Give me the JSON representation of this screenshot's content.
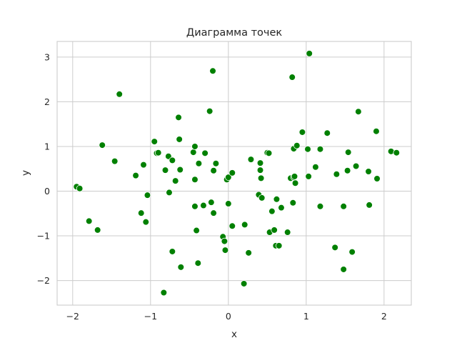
{
  "chart_data": {
    "type": "scatter",
    "title": "Диаграмма точек",
    "xlabel": "x",
    "ylabel": "y",
    "xlim": [
      -2.2,
      2.35
    ],
    "ylim": [
      -2.55,
      3.35
    ],
    "xticks": [
      -2,
      -1,
      0,
      1,
      2
    ],
    "yticks": [
      -2,
      -1,
      0,
      1,
      2,
      3
    ],
    "xtick_labels": [
      "−2",
      "−1",
      "0",
      "1",
      "2"
    ],
    "ytick_labels": [
      "−2",
      "−1",
      "0",
      "1",
      "2",
      "3"
    ],
    "grid": true,
    "legend": false,
    "marker_color": "#008000",
    "points": [
      {
        "x": -1.95,
        "y": 0.1
      },
      {
        "x": -1.91,
        "y": 0.06
      },
      {
        "x": -1.79,
        "y": -0.67
      },
      {
        "x": -1.68,
        "y": -0.87
      },
      {
        "x": -1.62,
        "y": 1.03
      },
      {
        "x": -1.46,
        "y": 0.67
      },
      {
        "x": -1.4,
        "y": 2.17
      },
      {
        "x": -1.19,
        "y": 0.35
      },
      {
        "x": -1.12,
        "y": -0.49
      },
      {
        "x": -1.09,
        "y": 0.59
      },
      {
        "x": -1.06,
        "y": -0.69
      },
      {
        "x": -1.04,
        "y": -0.09
      },
      {
        "x": -0.95,
        "y": 1.11
      },
      {
        "x": -0.92,
        "y": 0.85
      },
      {
        "x": -0.9,
        "y": 0.86
      },
      {
        "x": -0.83,
        "y": -2.27
      },
      {
        "x": -0.81,
        "y": 0.47
      },
      {
        "x": -0.77,
        "y": 0.78
      },
      {
        "x": -0.76,
        "y": -0.03
      },
      {
        "x": -0.72,
        "y": -1.35
      },
      {
        "x": -0.72,
        "y": 0.69
      },
      {
        "x": -0.68,
        "y": 0.23
      },
      {
        "x": -0.64,
        "y": 1.65
      },
      {
        "x": -0.63,
        "y": 1.16
      },
      {
        "x": -0.62,
        "y": 0.48
      },
      {
        "x": -0.61,
        "y": -1.7
      },
      {
        "x": -0.45,
        "y": 0.87
      },
      {
        "x": -0.43,
        "y": 1.0
      },
      {
        "x": -0.43,
        "y": 0.26
      },
      {
        "x": -0.43,
        "y": -0.34
      },
      {
        "x": -0.41,
        "y": -0.88
      },
      {
        "x": -0.39,
        "y": -1.61
      },
      {
        "x": -0.38,
        "y": 0.62
      },
      {
        "x": -0.32,
        "y": -0.32
      },
      {
        "x": -0.3,
        "y": 0.85
      },
      {
        "x": -0.24,
        "y": 1.79
      },
      {
        "x": -0.22,
        "y": -0.25
      },
      {
        "x": -0.2,
        "y": 2.69
      },
      {
        "x": -0.19,
        "y": 0.46
      },
      {
        "x": -0.19,
        "y": -0.49
      },
      {
        "x": -0.16,
        "y": 0.62
      },
      {
        "x": -0.07,
        "y": -1.02
      },
      {
        "x": -0.05,
        "y": -1.12
      },
      {
        "x": -0.04,
        "y": -1.32
      },
      {
        "x": -0.02,
        "y": 0.26
      },
      {
        "x": 0.0,
        "y": 0.31
      },
      {
        "x": 0.0,
        "y": -0.28
      },
      {
        "x": 0.05,
        "y": 0.41
      },
      {
        "x": 0.05,
        "y": -0.78
      },
      {
        "x": 0.2,
        "y": -2.07
      },
      {
        "x": 0.21,
        "y": -0.75
      },
      {
        "x": 0.26,
        "y": -1.38
      },
      {
        "x": 0.29,
        "y": 0.71
      },
      {
        "x": 0.39,
        "y": -0.08
      },
      {
        "x": 0.41,
        "y": 0.63
      },
      {
        "x": 0.41,
        "y": 0.47
      },
      {
        "x": 0.42,
        "y": 0.29
      },
      {
        "x": 0.43,
        "y": -0.15
      },
      {
        "x": 0.5,
        "y": 0.86
      },
      {
        "x": 0.52,
        "y": 0.85
      },
      {
        "x": 0.53,
        "y": -0.92
      },
      {
        "x": 0.56,
        "y": -0.45
      },
      {
        "x": 0.59,
        "y": -0.87
      },
      {
        "x": 0.61,
        "y": -1.22
      },
      {
        "x": 0.62,
        "y": -0.18
      },
      {
        "x": 0.65,
        "y": -1.22
      },
      {
        "x": 0.68,
        "y": -0.37
      },
      {
        "x": 0.76,
        "y": -0.92
      },
      {
        "x": 0.8,
        "y": 0.29
      },
      {
        "x": 0.82,
        "y": 2.55
      },
      {
        "x": 0.83,
        "y": -0.26
      },
      {
        "x": 0.84,
        "y": 0.31
      },
      {
        "x": 0.84,
        "y": 0.95
      },
      {
        "x": 0.85,
        "y": 0.33
      },
      {
        "x": 0.86,
        "y": 0.18
      },
      {
        "x": 0.88,
        "y": 1.02
      },
      {
        "x": 0.95,
        "y": 1.32
      },
      {
        "x": 1.02,
        "y": 0.94
      },
      {
        "x": 1.03,
        "y": 0.33
      },
      {
        "x": 1.04,
        "y": 3.08
      },
      {
        "x": 1.12,
        "y": 0.54
      },
      {
        "x": 1.18,
        "y": 0.94
      },
      {
        "x": 1.18,
        "y": -0.34
      },
      {
        "x": 1.27,
        "y": 1.3
      },
      {
        "x": 1.37,
        "y": -1.26
      },
      {
        "x": 1.39,
        "y": 0.38
      },
      {
        "x": 1.48,
        "y": -0.34
      },
      {
        "x": 1.48,
        "y": -1.75
      },
      {
        "x": 1.53,
        "y": 0.46
      },
      {
        "x": 1.54,
        "y": 0.87
      },
      {
        "x": 1.59,
        "y": -1.36
      },
      {
        "x": 1.64,
        "y": 0.56
      },
      {
        "x": 1.67,
        "y": 1.78
      },
      {
        "x": 1.8,
        "y": 0.44
      },
      {
        "x": 1.81,
        "y": -0.31
      },
      {
        "x": 1.9,
        "y": 1.34
      },
      {
        "x": 1.91,
        "y": 0.28
      },
      {
        "x": 2.09,
        "y": 0.89
      },
      {
        "x": 2.16,
        "y": 0.86
      }
    ]
  }
}
